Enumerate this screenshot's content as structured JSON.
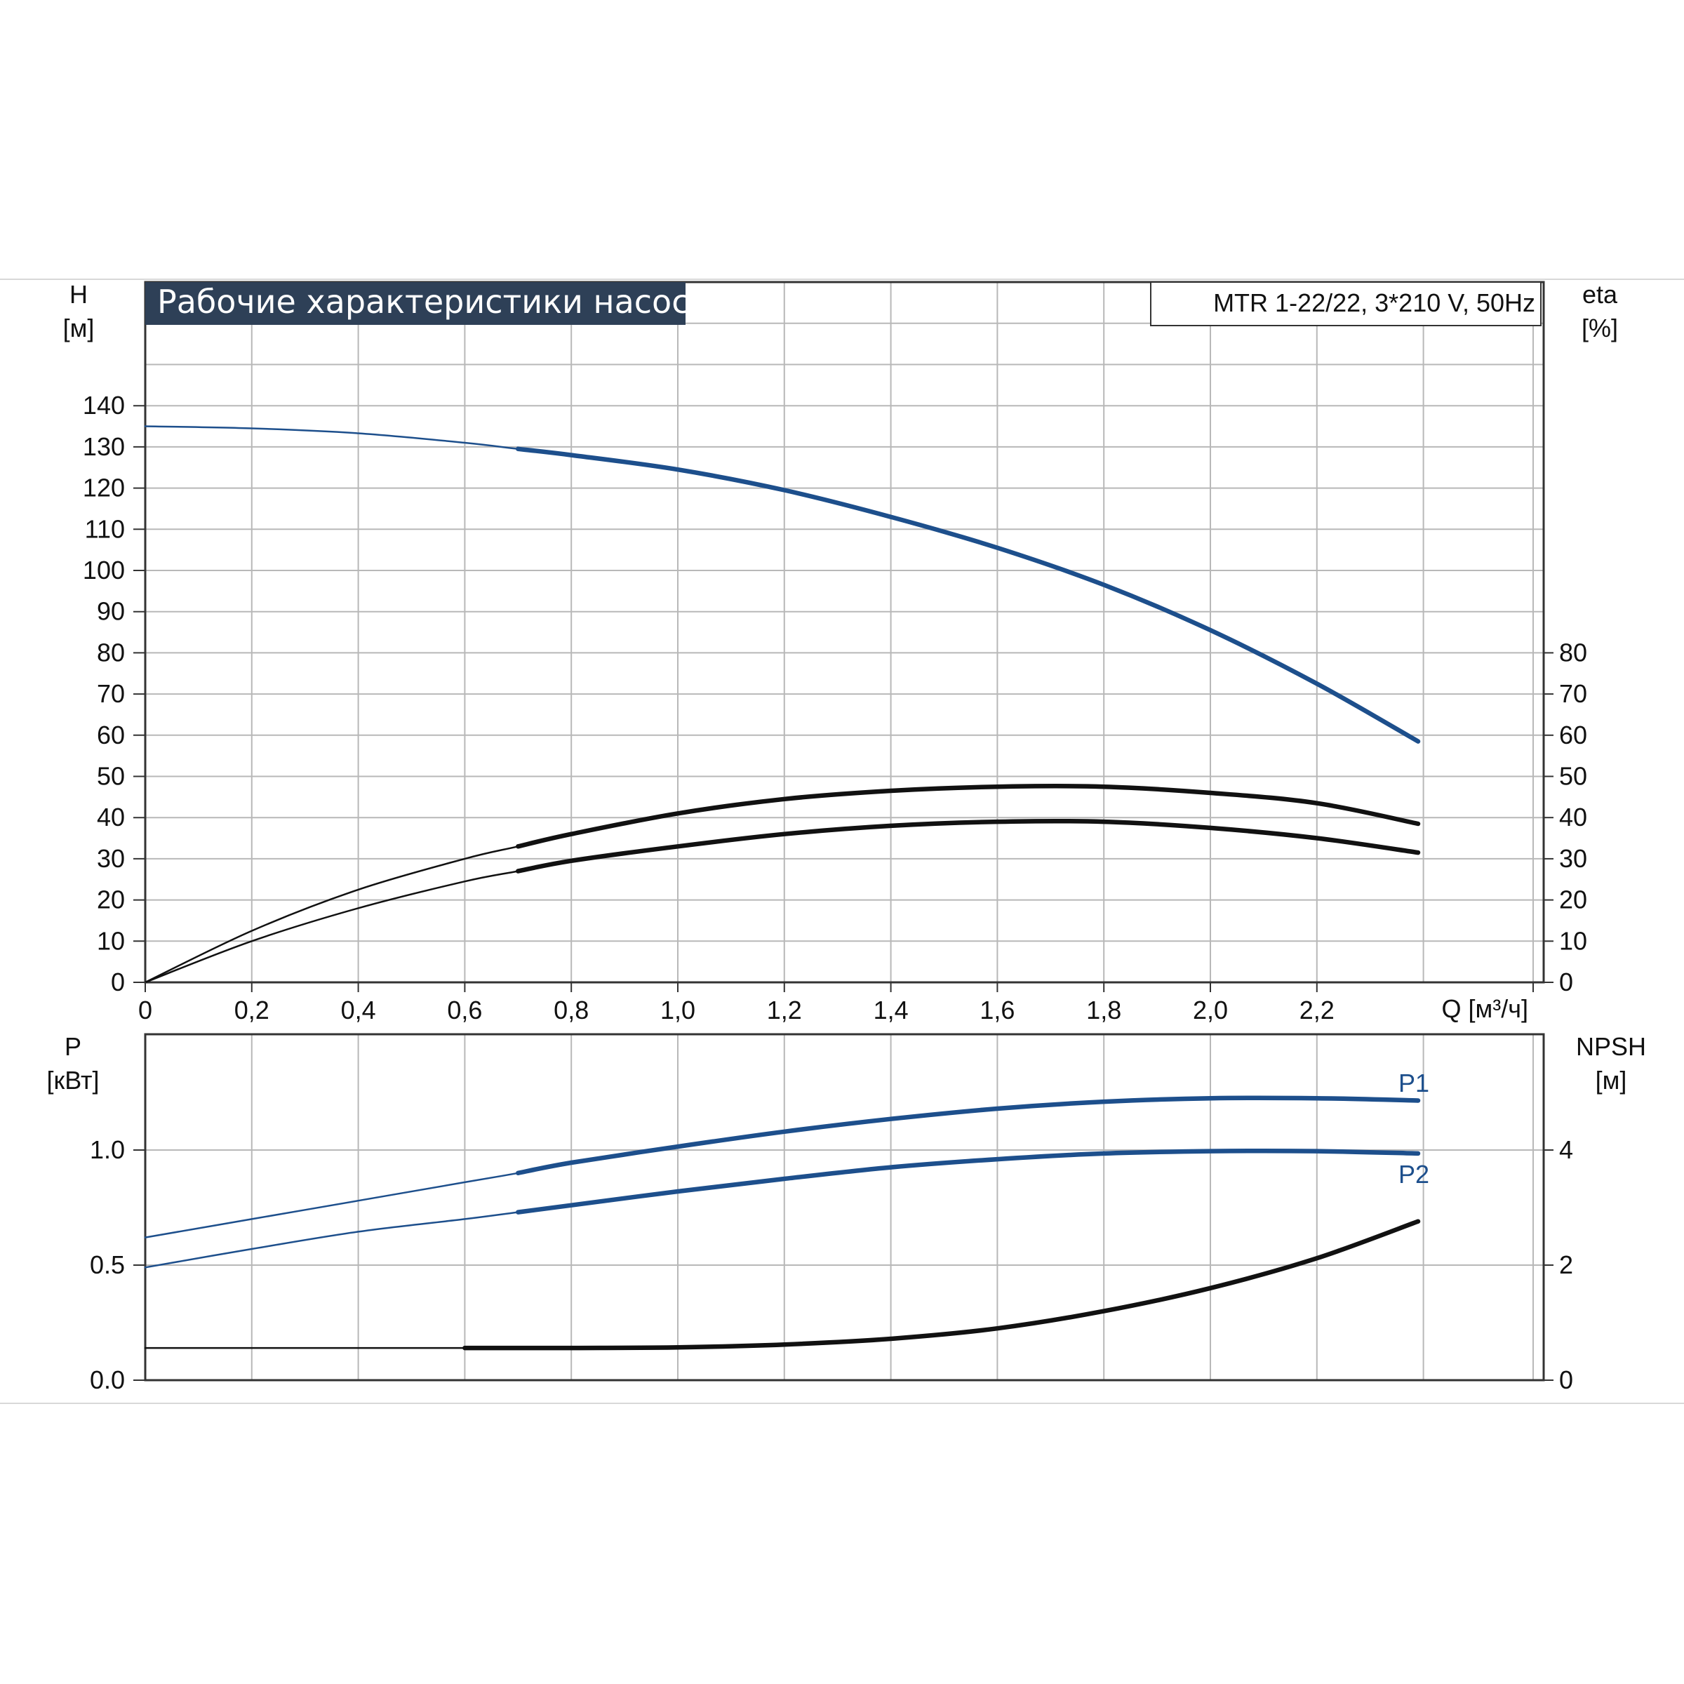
{
  "chart_data": [
    {
      "type": "line",
      "title": "Рабочие характеристики насоса",
      "subtitle": "MTR 1-22/22, 3*210 V, 50Hz",
      "xlabel": "Q [м³/ч]",
      "ylabel": [
        "H",
        "[м]"
      ],
      "ylabel_right": [
        "eta",
        "[%]"
      ],
      "xlim": [
        0,
        2.6
      ],
      "ylim": [
        0,
        160
      ],
      "ylim_right": [
        0,
        160
      ],
      "grid": true,
      "x_ticks": [
        "0",
        "0,2",
        "0,4",
        "0,6",
        "0,8",
        "1,0",
        "1,2",
        "1,4",
        "1,6",
        "1,8",
        "2,0",
        "2,2"
      ],
      "y_ticks": [
        "0",
        "10",
        "20",
        "30",
        "40",
        "50",
        "60",
        "70",
        "80",
        "90",
        "100",
        "110",
        "120",
        "130",
        "140"
      ],
      "y_ticks_right": [
        "0",
        "10",
        "20",
        "30",
        "40",
        "50",
        "60",
        "70",
        "80"
      ],
      "series": [
        {
          "role": "head",
          "color": "#1d4f8c",
          "x": [
            0,
            0.2,
            0.4,
            0.6,
            0.7,
            0.8,
            1.0,
            1.2,
            1.4,
            1.6,
            1.8,
            2.0,
            2.2,
            2.39
          ],
          "values": [
            135,
            134.5,
            133.3,
            131,
            129.5,
            128,
            124.5,
            119.5,
            113,
            105.5,
            96.5,
            85.5,
            72.5,
            58.5
          ],
          "thick_from": 0.7
        },
        {
          "role": "eta-upper",
          "color": "#111111",
          "x": [
            0,
            0.2,
            0.4,
            0.6,
            0.7,
            0.8,
            1.0,
            1.2,
            1.4,
            1.6,
            1.8,
            2.0,
            2.2,
            2.39
          ],
          "values": [
            0,
            12.5,
            22.5,
            30,
            33,
            36,
            41,
            44.5,
            46.5,
            47.5,
            47.5,
            46,
            43.5,
            38.5
          ],
          "thick_from": 0.7
        },
        {
          "role": "eta",
          "color": "#111111",
          "x": [
            0,
            0.2,
            0.4,
            0.6,
            0.7,
            0.8,
            1.0,
            1.2,
            1.4,
            1.6,
            1.8,
            2.0,
            2.2,
            2.39
          ],
          "values": [
            0,
            10,
            18,
            24.5,
            27,
            29.5,
            33,
            36,
            38,
            39,
            39,
            37.5,
            35,
            31.5
          ],
          "thick_from": 0.7
        }
      ]
    },
    {
      "type": "line",
      "xlabel": "",
      "ylabel": [
        "P",
        "[кВт]"
      ],
      "ylabel_right": [
        "NPSH",
        "[м]"
      ],
      "xlim": [
        0,
        2.6
      ],
      "ylim": [
        0,
        1.5
      ],
      "ylim_right": [
        0,
        6
      ],
      "grid": true,
      "y_ticks": [
        "0.0",
        "0.5",
        "1.0"
      ],
      "y_ticks_right": [
        "0",
        "2",
        "4"
      ],
      "series": [
        {
          "name": "P1",
          "color": "#1d4f8c",
          "x": [
            0,
            0.2,
            0.4,
            0.6,
            0.7,
            0.8,
            1.0,
            1.2,
            1.4,
            1.6,
            1.8,
            2.0,
            2.2,
            2.39
          ],
          "values": [
            0.62,
            0.7,
            0.78,
            0.86,
            0.9,
            0.945,
            1.015,
            1.08,
            1.135,
            1.18,
            1.21,
            1.225,
            1.225,
            1.215
          ],
          "thick_from": 0.7
        },
        {
          "name": "P2",
          "color": "#1d4f8c",
          "x": [
            0,
            0.2,
            0.4,
            0.6,
            0.7,
            0.8,
            1.0,
            1.2,
            1.4,
            1.6,
            1.8,
            2.0,
            2.2,
            2.39
          ],
          "values": [
            0.49,
            0.57,
            0.645,
            0.7,
            0.73,
            0.76,
            0.82,
            0.875,
            0.925,
            0.96,
            0.985,
            0.995,
            0.995,
            0.985
          ],
          "thick_from": 0.7
        },
        {
          "role": "npsh",
          "color": "#111111",
          "axis": "right",
          "x": [
            0,
            0.2,
            0.4,
            0.6,
            0.7,
            0.8,
            1.0,
            1.2,
            1.4,
            1.6,
            1.8,
            2.0,
            2.2,
            2.39
          ],
          "values": [
            0.56,
            0.56,
            0.56,
            0.56,
            0.56,
            0.56,
            0.57,
            0.62,
            0.72,
            0.9,
            1.2,
            1.6,
            2.12,
            2.76
          ],
          "thick_from": 0.5
        }
      ]
    }
  ]
}
